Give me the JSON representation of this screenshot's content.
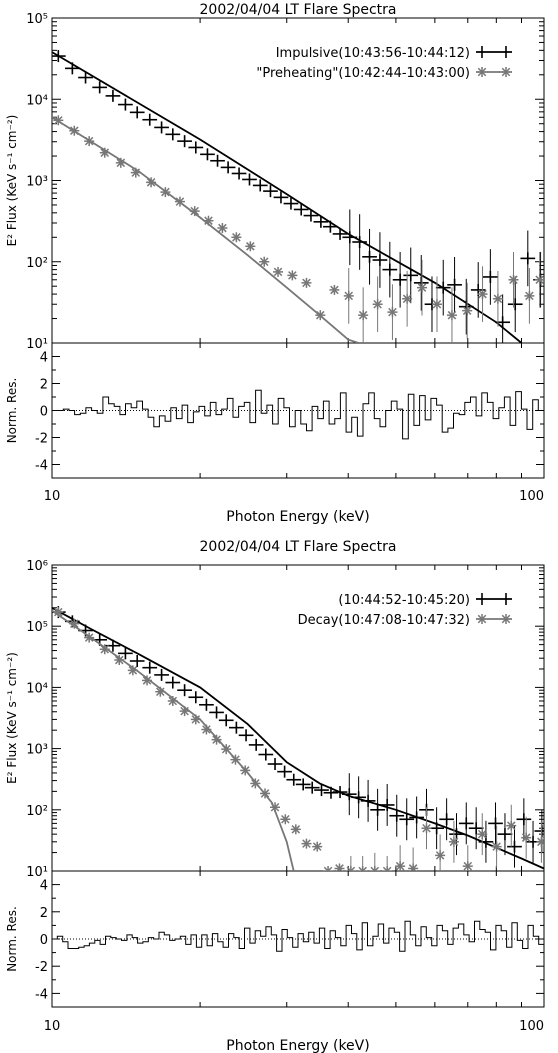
{
  "chart_data": [
    {
      "type": "line",
      "title": "2002/04/04 LT Flare Spectra",
      "xlabel": "Photon Energy (keV)",
      "ylabel": "E² Flux (KeV s⁻¹ cm⁻²)",
      "xscale": "log",
      "yscale": "log",
      "xlim": [
        10,
        100
      ],
      "ylim": [
        10,
        100000
      ],
      "x_ticklabels": [
        "10",
        "100"
      ],
      "y_ticklabels": [
        "10¹",
        "10²",
        "10³",
        "10⁴",
        "10⁵"
      ],
      "legend_placement": "top-right",
      "series": [
        {
          "name": "Impulsive(10:43:56-10:44:12)",
          "color": "#000000",
          "marker": "plus",
          "model": [
            [
              10,
              38000
            ],
            [
              20,
              3200
            ],
            [
              30,
              680
            ],
            [
              40,
              220
            ],
            [
              60,
              55
            ],
            [
              80,
              18
            ],
            [
              90,
              10
            ]
          ],
          "points": [
            [
              10.3,
              34000
            ],
            [
              11.0,
              24000
            ],
            [
              11.7,
              18500
            ],
            [
              12.5,
              14000
            ],
            [
              13.3,
              11000
            ],
            [
              14.1,
              8600
            ],
            [
              14.9,
              6900
            ],
            [
              15.8,
              5600
            ],
            [
              16.7,
              4500
            ],
            [
              17.6,
              3700
            ],
            [
              18.6,
              3050
            ],
            [
              19.6,
              2550
            ],
            [
              20.7,
              2100
            ],
            [
              21.7,
              1750
            ],
            [
              22.8,
              1450
            ],
            [
              24.0,
              1220
            ],
            [
              25.2,
              1030
            ],
            [
              26.5,
              870
            ],
            [
              27.8,
              740
            ],
            [
              29.2,
              620
            ],
            [
              30.6,
              520
            ],
            [
              32.1,
              440
            ],
            [
              33.6,
              370
            ],
            [
              35.2,
              310
            ],
            [
              36.8,
              270
            ],
            [
              38.5,
              220
            ],
            [
              40.3,
              200
            ],
            [
              42.2,
              175
            ],
            [
              44.2,
              115
            ],
            [
              46.4,
              105
            ],
            [
              48.6,
              80
            ],
            [
              51.0,
              60
            ],
            [
              53.6,
              68
            ],
            [
              56.3,
              55
            ],
            [
              59.2,
              30
            ],
            [
              62.4,
              48
            ],
            [
              65.8,
              52
            ],
            [
              69.5,
              28
            ],
            [
              73.5,
              45
            ],
            [
              77.8,
              65
            ],
            [
              82.4,
              18
            ],
            [
              87.4,
              30
            ],
            [
              92.7,
              110
            ],
            [
              98.4,
              60
            ]
          ]
        },
        {
          "name": "\"Preheating\"(10:42:44-10:43:00)",
          "color": "#777777",
          "marker": "asterisk",
          "model": [
            [
              10,
              6000
            ],
            [
              15,
              1300
            ],
            [
              20,
              350
            ],
            [
              25,
              120
            ],
            [
              30,
              48
            ],
            [
              35,
              22
            ],
            [
              40,
              11
            ],
            [
              42,
              9.5
            ]
          ],
          "points": [
            [
              10.3,
              5500
            ],
            [
              11.1,
              4100
            ],
            [
              11.9,
              3050
            ],
            [
              12.8,
              2200
            ],
            [
              13.8,
              1650
            ],
            [
              14.8,
              1250
            ],
            [
              15.9,
              950
            ],
            [
              17.0,
              720
            ],
            [
              18.2,
              550
            ],
            [
              19.5,
              420
            ],
            [
              20.8,
              320
            ],
            [
              22.2,
              260
            ],
            [
              23.7,
              200
            ],
            [
              25.3,
              155
            ],
            [
              27.0,
              100
            ],
            [
              28.8,
              75
            ],
            [
              30.8,
              68
            ],
            [
              32.9,
              55
            ],
            [
              35.1,
              22
            ],
            [
              37.5,
              45
            ],
            [
              40.1,
              38
            ],
            [
              42.9,
              22
            ],
            [
              45.9,
              30
            ],
            [
              49.2,
              24
            ],
            [
              52.7,
              35
            ],
            [
              56.5,
              48
            ],
            [
              60.6,
              30
            ],
            [
              65.0,
              22
            ],
            [
              69.8,
              25
            ],
            [
              75.0,
              40
            ],
            [
              80.6,
              35
            ],
            [
              86.7,
              60
            ],
            [
              93.4,
              38
            ],
            [
              98.0,
              60
            ]
          ]
        }
      ],
      "residuals": {
        "ylabel": "Norm. Res.",
        "ylim": [
          -5,
          5
        ],
        "y_ticklabels": [
          "-4",
          "-2",
          "0",
          "2",
          "4"
        ],
        "values": [
          0.0,
          0.0,
          0.1,
          0.0,
          -0.3,
          -0.2,
          0.2,
          0.0,
          -0.2,
          1.0,
          0.5,
          0.3,
          -0.3,
          0.5,
          0.2,
          0.7,
          0.1,
          -0.5,
          -1.2,
          -0.4,
          -0.8,
          0.2,
          -0.6,
          0.4,
          -0.9,
          -0.1,
          0.3,
          -0.4,
          0.6,
          -0.3,
          0.1,
          0.9,
          -0.5,
          0.3,
          0.6,
          -0.9,
          1.5,
          -0.2,
          0.4,
          -1.0,
          0.9,
          0.2,
          -1.2,
          0.0,
          -1.0,
          -1.5,
          0.3,
          -0.6,
          0.7,
          -1.0,
          -0.6,
          1.3,
          -1.6,
          -0.5,
          -1.9,
          0.5,
          1.3,
          -0.6,
          -1.2,
          0.0,
          0.7,
          0.1,
          -2.1,
          1.2,
          -1.1,
          1.1,
          -0.7,
          0.9,
          0.4,
          -1.6,
          -1.3,
          -0.2,
          -0.3,
          0.6,
          1.0,
          -0.4,
          1.3,
          0.6,
          -0.6,
          0.2,
          1.0,
          -1.1,
          1.4,
          0.1,
          -1.4,
          0.8,
          0.0
        ]
      }
    },
    {
      "type": "line",
      "title": "2002/04/04 LT Flare Spectra",
      "xlabel": "Photon Energy (keV)",
      "ylabel": "E² Flux (KeV s⁻¹ cm⁻²)",
      "xscale": "log",
      "yscale": "log",
      "xlim": [
        10,
        100
      ],
      "ylim": [
        10,
        1000000
      ],
      "x_ticklabels": [
        "10",
        "100"
      ],
      "y_ticklabels": [
        "10¹",
        "10²",
        "10³",
        "10⁴",
        "10⁵",
        "10⁶"
      ],
      "legend_placement": "top-right",
      "series": [
        {
          "name": "(10:44:52-10:45:20)",
          "color": "#000000",
          "marker": "plus",
          "model": [
            [
              10,
              200000
            ],
            [
              12,
              90000
            ],
            [
              15,
              35000
            ],
            [
              20,
              10000
            ],
            [
              25,
              2500
            ],
            [
              30,
              600
            ],
            [
              35,
              270
            ],
            [
              40,
              170
            ],
            [
              50,
              100
            ],
            [
              60,
              60
            ],
            [
              70,
              38
            ],
            [
              80,
              24
            ],
            [
              90,
              16
            ],
            [
              100,
              11
            ]
          ],
          "points": [
            [
              10.3,
              170000
            ],
            [
              11.0,
              120000
            ],
            [
              11.7,
              85000
            ],
            [
              12.5,
              60000
            ],
            [
              13.3,
              48000
            ],
            [
              14.1,
              36000
            ],
            [
              14.9,
              27000
            ],
            [
              15.8,
              21000
            ],
            [
              16.7,
              16000
            ],
            [
              17.6,
              12000
            ],
            [
              18.6,
              9000
            ],
            [
              19.6,
              6900
            ],
            [
              20.6,
              5200
            ],
            [
              21.6,
              3900
            ],
            [
              22.6,
              2900
            ],
            [
              23.7,
              2200
            ],
            [
              24.8,
              1650
            ],
            [
              26.0,
              1150
            ],
            [
              27.2,
              800
            ],
            [
              28.4,
              560
            ],
            [
              29.7,
              420
            ],
            [
              31.0,
              310
            ],
            [
              32.4,
              260
            ],
            [
              33.8,
              230
            ],
            [
              35.3,
              210
            ],
            [
              36.9,
              190
            ],
            [
              38.5,
              195
            ],
            [
              40.2,
              180
            ],
            [
              42.0,
              160
            ],
            [
              43.9,
              140
            ],
            [
              45.9,
              100
            ],
            [
              48.0,
              120
            ],
            [
              50.2,
              80
            ],
            [
              52.6,
              70
            ],
            [
              55.1,
              75
            ],
            [
              57.7,
              100
            ],
            [
              60.5,
              50
            ],
            [
              63.4,
              70
            ],
            [
              66.4,
              40
            ],
            [
              69.5,
              60
            ],
            [
              72.8,
              50
            ],
            [
              76.2,
              30
            ],
            [
              79.7,
              60
            ],
            [
              83.3,
              40
            ],
            [
              87.1,
              25
            ],
            [
              91.0,
              70
            ],
            [
              95.0,
              30
            ],
            [
              99.0,
              45
            ]
          ]
        },
        {
          "name": "Decay(10:47:08-10:47:32)",
          "color": "#777777",
          "marker": "asterisk",
          "model": [
            [
              10,
              180000
            ],
            [
              12,
              65000
            ],
            [
              15,
              18000
            ],
            [
              20,
              3000
            ],
            [
              25,
              400
            ],
            [
              28,
              130
            ],
            [
              30,
              30
            ],
            [
              31,
              10
            ]
          ],
          "points": [
            [
              10.3,
              170000
            ],
            [
              11.1,
              110000
            ],
            [
              11.9,
              65000
            ],
            [
              12.8,
              42000
            ],
            [
              13.7,
              28000
            ],
            [
              14.6,
              19000
            ],
            [
              15.6,
              13000
            ],
            [
              16.6,
              8500
            ],
            [
              17.6,
              6000
            ],
            [
              18.6,
              4100
            ],
            [
              19.6,
              3000
            ],
            [
              20.6,
              2050
            ],
            [
              21.6,
              1400
            ],
            [
              22.6,
              980
            ],
            [
              23.6,
              660
            ],
            [
              24.7,
              440
            ],
            [
              25.9,
              270
            ],
            [
              27.1,
              185
            ],
            [
              28.4,
              110
            ],
            [
              29.8,
              70
            ],
            [
              31.3,
              48
            ],
            [
              32.9,
              28
            ],
            [
              34.6,
              25
            ],
            [
              36.4,
              10
            ],
            [
              38.4,
              11
            ],
            [
              40.5,
              8
            ],
            [
              42.8,
              8
            ],
            [
              45.3,
              9
            ],
            [
              48.0,
              8
            ],
            [
              51.0,
              12
            ],
            [
              54.2,
              11
            ],
            [
              57.7,
              50
            ],
            [
              61.5,
              18
            ],
            [
              65.6,
              30
            ],
            [
              70.0,
              12
            ],
            [
              74.9,
              40
            ],
            [
              80.1,
              25
            ],
            [
              85.8,
              55
            ],
            [
              92.0,
              35
            ],
            [
              98.8,
              30
            ]
          ]
        }
      ],
      "residuals": {
        "ylabel": "Norm. Res.",
        "ylim": [
          -5,
          5
        ],
        "y_ticklabels": [
          "-4",
          "-2",
          "0",
          "2",
          "4"
        ],
        "values": [
          0.0,
          0.2,
          -0.2,
          -0.7,
          -0.7,
          -0.6,
          -0.5,
          -0.3,
          -0.1,
          -0.4,
          0.2,
          0.1,
          0.0,
          -0.1,
          0.3,
          0.1,
          -0.3,
          -0.2,
          0.1,
          0.0,
          0.5,
          0.3,
          -0.1,
          0.0,
          0.2,
          -0.4,
          0.3,
          -0.6,
          0.3,
          -0.5,
          0.4,
          -0.2,
          -0.6,
          0.4,
          0.1,
          -0.7,
          0.8,
          -0.3,
          0.6,
          0.2,
          0.9,
          0.3,
          -0.9,
          0.7,
          0.1,
          -0.6,
          0.4,
          -0.2,
          0.5,
          -0.3,
          0.8,
          -0.7,
          0.6,
          0.1,
          -0.5,
          1.0,
          0.4,
          -0.8,
          1.2,
          -0.5,
          0.2,
          1.1,
          -0.3,
          0.8,
          0.5,
          -0.9,
          1.3,
          0.3,
          -0.5,
          0.9,
          0.1,
          -0.5,
          1.0,
          0.6,
          -0.4,
          0.8,
          1.1,
          0.3,
          -0.2,
          1.3,
          0.7,
          0.5,
          -0.8,
          1.0,
          0.6,
          -0.6,
          1.2,
          -0.1,
          -0.7,
          1.0,
          0.2,
          -0.4
        ]
      }
    }
  ]
}
